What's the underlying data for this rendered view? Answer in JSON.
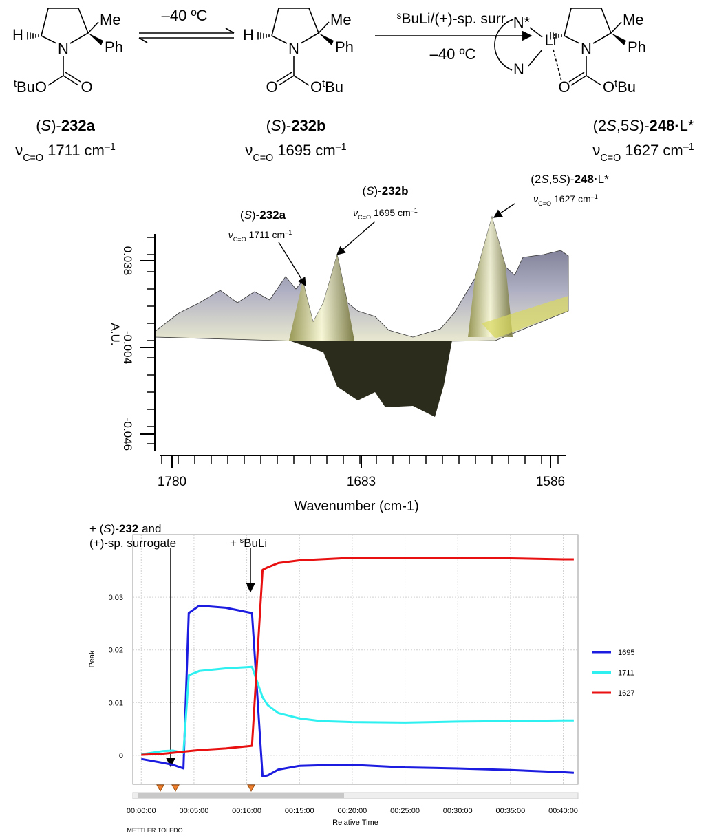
{
  "scheme": {
    "atoms": {
      "H": "H",
      "N": "N",
      "Me": "Me",
      "Ph": "Ph",
      "O": "O",
      "tBuO": [
        "t",
        "BuO"
      ],
      "OtBu": [
        "O",
        "t",
        "Bu"
      ],
      "Nstar": "N*",
      "Li": "Li"
    },
    "arrows": [
      {
        "above": "–40 ºC"
      },
      {
        "above": [
          "s",
          "BuLi/(+)-sp. surr."
        ],
        "below": "–40 ºC"
      }
    ],
    "compounds": [
      {
        "label": [
          "(",
          "S",
          ")-",
          "232a"
        ],
        "nu": [
          "ν",
          "C=O",
          " 1711 cm",
          "–1"
        ]
      },
      {
        "label": [
          "(",
          "S",
          ")-",
          "232b"
        ],
        "nu": [
          "ν",
          "C=O",
          " 1695 cm",
          "–1"
        ]
      },
      {
        "label": [
          "(2",
          "S",
          ",5",
          "S",
          ")-",
          "248",
          "·",
          "L*"
        ],
        "nu": [
          "ν",
          "C=O",
          " 1627 cm",
          "–1"
        ]
      }
    ]
  },
  "ir_plot": {
    "ylabel": "A.U.",
    "xlabel": "Wavenumber (cm-1)",
    "ylim": [
      -0.054,
      0.051
    ],
    "yticks": [
      0.038,
      -0.004,
      -0.046
    ],
    "xlim": [
      1780,
      1586
    ],
    "xticks": [
      1780,
      1683,
      1586
    ]
  },
  "chart_data": {
    "type": "line",
    "xlabel": "Relative Time",
    "ylabel": "Peak",
    "x": [
      0,
      2,
      3,
      4,
      4.5,
      5.5,
      8,
      10.5,
      11.5,
      12,
      13,
      15,
      17,
      20,
      25,
      30,
      35,
      40,
      41
    ],
    "xlim": [
      -0.8,
      41.4
    ],
    "xticks": [
      {
        "value": 0,
        "label": "00:00:00"
      },
      {
        "value": 5,
        "label": "00:05:00"
      },
      {
        "value": 10,
        "label": "00:10:00"
      },
      {
        "value": 15,
        "label": "00:15:00"
      },
      {
        "value": 20,
        "label": "00:20:00"
      },
      {
        "value": 25,
        "label": "00:25:00"
      },
      {
        "value": 30,
        "label": "00:30:00"
      },
      {
        "value": 35,
        "label": "00:35:00"
      },
      {
        "value": 40,
        "label": "00:40:00"
      }
    ],
    "ylim": [
      -0.0055,
      0.0419
    ],
    "yticks": [
      0,
      0.01,
      0.02,
      0.03
    ],
    "grid": true,
    "legend": "right",
    "series": [
      {
        "name": "1695",
        "color": "#1c1ce0",
        "values": [
          -0.0007,
          -0.0014,
          -0.0018,
          -0.0025,
          0.027,
          0.0284,
          0.028,
          0.027,
          -0.004,
          -0.0038,
          -0.0027,
          -0.002,
          -0.0019,
          -0.0018,
          -0.0023,
          -0.0025,
          -0.0028,
          -0.0032,
          -0.0033
        ]
      },
      {
        "name": "1711",
        "color": "#2ef0f0",
        "values": [
          0.0002,
          0.0008,
          0.0009,
          0.0005,
          0.0152,
          0.016,
          0.0165,
          0.0168,
          0.011,
          0.0095,
          0.008,
          0.007,
          0.0065,
          0.0063,
          0.0062,
          0.0064,
          0.0065,
          0.0066,
          0.0066
        ]
      },
      {
        "name": "1627",
        "color": "#e81010",
        "values": [
          0.0001,
          0.0003,
          0.0005,
          0.0007,
          0.0008,
          0.001,
          0.0013,
          0.0018,
          0.0352,
          0.0357,
          0.0365,
          0.037,
          0.0372,
          0.0375,
          0.0375,
          0.0375,
          0.0374,
          0.0372,
          0.0372
        ]
      }
    ],
    "annotations": [
      {
        "lines": [
          [
            "+ (",
            "S",
            ")-",
            "232",
            " and"
          ],
          [
            "(+)-sp. surrogate"
          ]
        ]
      },
      {
        "lines": [
          [
            "+ ",
            "s",
            "BuLi"
          ]
        ]
      }
    ]
  },
  "footer": "METTLER TOLEDO"
}
